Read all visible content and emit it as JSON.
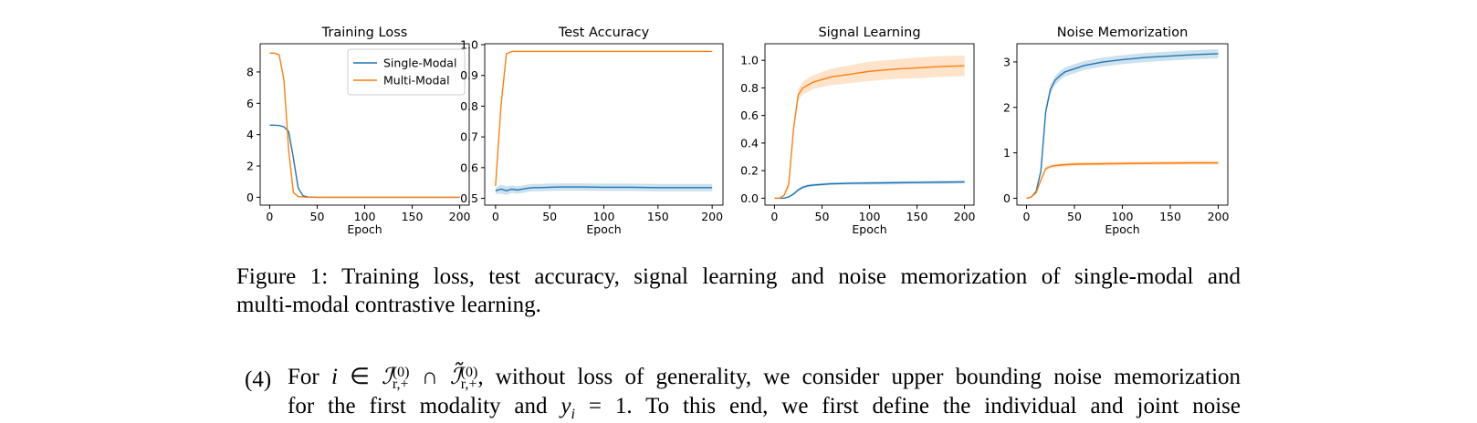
{
  "chart_data": [
    {
      "type": "line",
      "title": "Training Loss",
      "xlabel": "Epoch",
      "x": [
        0,
        5,
        10,
        15,
        20,
        25,
        30,
        35,
        40,
        50,
        60,
        80,
        100,
        125,
        150,
        175,
        200
      ],
      "xlim": [
        -10,
        210
      ],
      "xticks": [
        0,
        50,
        100,
        150,
        200
      ],
      "ylim": [
        -0.5,
        9.8
      ],
      "yticks": [
        0,
        2,
        4,
        6,
        8
      ],
      "legend": "upper right",
      "series": [
        {
          "name": "Single-Modal",
          "color": "#1f77b4",
          "values": [
            4.6,
            4.6,
            4.58,
            4.5,
            4.2,
            2.5,
            0.6,
            0.1,
            0.02,
            0,
            0,
            0,
            0,
            0,
            0,
            0,
            0
          ]
        },
        {
          "name": "Multi-Modal",
          "color": "#ff7f0e",
          "values": [
            9.2,
            9.2,
            9.1,
            7.5,
            3,
            0.3,
            0.05,
            0.02,
            0,
            0,
            0,
            0,
            0,
            0,
            0,
            0,
            0
          ]
        }
      ]
    },
    {
      "type": "line",
      "title": "Test Accuracy",
      "xlabel": "Epoch",
      "x": [
        0,
        5,
        10,
        15,
        20,
        25,
        30,
        35,
        40,
        50,
        60,
        80,
        100,
        125,
        150,
        175,
        200
      ],
      "xlim": [
        -10,
        210
      ],
      "xticks": [
        0,
        50,
        100,
        150,
        200
      ],
      "ylim": [
        0.478,
        1.003
      ],
      "yticks": [
        0.5,
        0.6,
        0.7,
        0.8,
        0.9,
        {
          "value": 1,
          "label": "1.0"
        }
      ],
      "series": [
        {
          "color": "#1f77b4",
          "values": [
            0.525,
            0.53,
            0.525,
            0.53,
            0.527,
            0.53,
            0.533,
            0.535,
            0.535,
            0.536,
            0.537,
            0.537,
            0.536,
            0.536,
            0.535,
            0.535,
            0.535
          ],
          "spread": [
            0.01,
            0.015,
            0.014,
            0.012,
            0.012,
            0.012,
            0.012,
            0.012,
            0.012,
            0.012,
            0.012,
            0.012,
            0.012,
            0.012,
            0.012,
            0.012,
            0.012
          ]
        },
        {
          "color": "#ff7f0e",
          "values": [
            0.54,
            0.8,
            0.97,
            0.978,
            0.978,
            0.978,
            0.978,
            0.978,
            0.978,
            0.978,
            0.978,
            0.978,
            0.978,
            0.978,
            0.978,
            0.978,
            0.978
          ]
        }
      ]
    },
    {
      "type": "line",
      "title": "Signal Learning",
      "xlabel": "Epoch",
      "x": [
        0,
        5,
        10,
        15,
        20,
        25,
        30,
        35,
        40,
        50,
        60,
        80,
        100,
        125,
        150,
        175,
        200
      ],
      "xlim": [
        -10,
        210
      ],
      "xticks": [
        0,
        50,
        100,
        150,
        200
      ],
      "ylim": [
        -0.05,
        1.12
      ],
      "yticks": [
        {
          "value": 0,
          "label": "0.0"
        },
        0.2,
        0.4,
        0.6,
        0.8,
        {
          "value": 1,
          "label": "1.0"
        }
      ],
      "series": [
        {
          "color": "#1f77b4",
          "values": [
            0,
            0,
            0,
            0.01,
            0.03,
            0.06,
            0.08,
            0.09,
            0.095,
            0.1,
            0.105,
            0.108,
            0.11,
            0.112,
            0.114,
            0.116,
            0.118
          ],
          "spread": [
            0,
            0,
            0,
            0.005,
            0.008,
            0.01,
            0.01,
            0.01,
            0.01,
            0.01,
            0.01,
            0.01,
            0.012,
            0.012,
            0.012,
            0.012,
            0.012
          ]
        },
        {
          "color": "#ff7f0e",
          "values": [
            0,
            0,
            0.02,
            0.1,
            0.5,
            0.75,
            0.8,
            0.82,
            0.84,
            0.86,
            0.88,
            0.9,
            0.92,
            0.935,
            0.945,
            0.955,
            0.96
          ],
          "spread": [
            0,
            0,
            0.01,
            0.02,
            0.03,
            0.04,
            0.045,
            0.05,
            0.05,
            0.055,
            0.06,
            0.065,
            0.07,
            0.07,
            0.075,
            0.075,
            0.075
          ]
        }
      ]
    },
    {
      "type": "line",
      "title": "Noise Memorization",
      "xlabel": "Epoch",
      "x": [
        0,
        5,
        10,
        15,
        20,
        25,
        30,
        35,
        40,
        50,
        60,
        80,
        100,
        125,
        150,
        175,
        200
      ],
      "xlim": [
        -10,
        210
      ],
      "xticks": [
        0,
        50,
        100,
        150,
        200
      ],
      "ylim": [
        -0.15,
        3.4
      ],
      "yticks": [
        0,
        1,
        2,
        3
      ],
      "series": [
        {
          "color": "#1f77b4",
          "values": [
            0,
            0.03,
            0.15,
            0.6,
            1.9,
            2.4,
            2.6,
            2.7,
            2.78,
            2.85,
            2.92,
            3.0,
            3.05,
            3.1,
            3.13,
            3.16,
            3.18
          ],
          "spread": [
            0,
            0.01,
            0.03,
            0.06,
            0.1,
            0.1,
            0.1,
            0.1,
            0.1,
            0.1,
            0.1,
            0.1,
            0.1,
            0.1,
            0.1,
            0.1,
            0.1
          ]
        },
        {
          "color": "#ff7f0e",
          "values": [
            0,
            0.03,
            0.12,
            0.4,
            0.65,
            0.7,
            0.72,
            0.73,
            0.74,
            0.75,
            0.755,
            0.76,
            0.765,
            0.77,
            0.775,
            0.78,
            0.78
          ],
          "spread": [
            0,
            0.01,
            0.02,
            0.03,
            0.04,
            0.04,
            0.04,
            0.04,
            0.04,
            0.04,
            0.04,
            0.04,
            0.04,
            0.04,
            0.04,
            0.04,
            0.04
          ]
        }
      ]
    }
  ],
  "caption": {
    "lines": [
      "Figure 1: Training loss, test accuracy, signal learning and noise memorization of single-modal and",
      "multi-modal contrastive learning."
    ]
  },
  "paragraph": {
    "label": "(4)",
    "line1": {
      "lead": "For",
      "var": "i",
      "op1": "∈",
      "set": "ℐ",
      "sup": "(0)",
      "sub": "r,+",
      "op2": "∩",
      "set2": "ℐ̃",
      "rest": ", without loss of generality, we consider upper bounding noise memorization"
    },
    "line2": {
      "lead": "for the first modality and",
      "var": "y",
      "sub": "i",
      "eq": "= 1.",
      "rest": "To this end, we first define the individual and joint noise"
    }
  }
}
